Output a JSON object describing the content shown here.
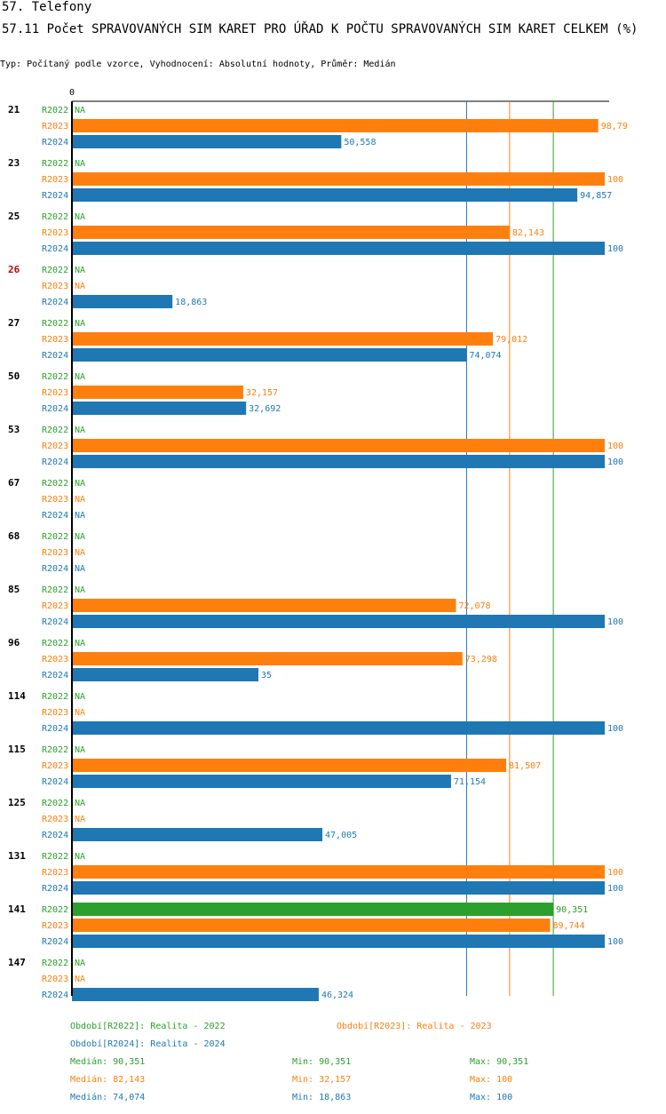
{
  "header": {
    "title": "57. Telefony",
    "subtitle": "57.11 Počet SPRAVOVANÝCH SIM KARET PRO ÚŘAD K POČTU SPRAVOVANÝCH SIM KARET CELKEM (%)",
    "meta": "Typ: Počítaný podle vzorce, Vyhodnocení: Absolutní hodnoty, Průměr: Medián"
  },
  "colors": {
    "R2022": "#2ca02c",
    "R2023": "#ff7f0e",
    "R2024": "#1f77b4",
    "highlight_group": "#cc0000",
    "default_group": "#000000"
  },
  "chart_data": {
    "type": "bar",
    "orientation": "horizontal",
    "axis_zero_label": "0",
    "xlim": [
      0,
      100
    ],
    "na_label": "NA",
    "series_names": [
      "R2022",
      "R2023",
      "R2024"
    ],
    "groups": [
      {
        "label": "21",
        "highlight": false,
        "values": [
          null,
          98.79,
          50.558
        ],
        "labels": [
          "NA",
          "98,79",
          "50,558"
        ]
      },
      {
        "label": "23",
        "highlight": false,
        "values": [
          null,
          100,
          94.857
        ],
        "labels": [
          "NA",
          "100",
          "94,857"
        ]
      },
      {
        "label": "25",
        "highlight": false,
        "values": [
          null,
          82.143,
          100
        ],
        "labels": [
          "NA",
          "82,143",
          "100"
        ]
      },
      {
        "label": "26",
        "highlight": true,
        "values": [
          null,
          null,
          18.863
        ],
        "labels": [
          "NA",
          "NA",
          "18,863"
        ]
      },
      {
        "label": "27",
        "highlight": false,
        "values": [
          null,
          79.012,
          74.074
        ],
        "labels": [
          "NA",
          "79,012",
          "74,074"
        ]
      },
      {
        "label": "50",
        "highlight": false,
        "values": [
          null,
          32.157,
          32.692
        ],
        "labels": [
          "NA",
          "32,157",
          "32,692"
        ]
      },
      {
        "label": "53",
        "highlight": false,
        "values": [
          null,
          100,
          100
        ],
        "labels": [
          "NA",
          "100",
          "100"
        ]
      },
      {
        "label": "67",
        "highlight": false,
        "values": [
          null,
          null,
          null
        ],
        "labels": [
          "NA",
          "NA",
          "NA"
        ]
      },
      {
        "label": "68",
        "highlight": false,
        "values": [
          null,
          null,
          null
        ],
        "labels": [
          "NA",
          "NA",
          "NA"
        ]
      },
      {
        "label": "85",
        "highlight": false,
        "values": [
          null,
          72.078,
          100
        ],
        "labels": [
          "NA",
          "72,078",
          "100"
        ]
      },
      {
        "label": "96",
        "highlight": false,
        "values": [
          null,
          73.298,
          35
        ],
        "labels": [
          "NA",
          "73,298",
          "35"
        ]
      },
      {
        "label": "114",
        "highlight": false,
        "values": [
          null,
          null,
          100
        ],
        "labels": [
          "NA",
          "NA",
          "100"
        ]
      },
      {
        "label": "115",
        "highlight": false,
        "values": [
          null,
          81.507,
          71.154
        ],
        "labels": [
          "NA",
          "81,507",
          "71,154"
        ]
      },
      {
        "label": "125",
        "highlight": false,
        "values": [
          null,
          null,
          47.005
        ],
        "labels": [
          "NA",
          "NA",
          "47,005"
        ]
      },
      {
        "label": "131",
        "highlight": false,
        "values": [
          null,
          100,
          100
        ],
        "labels": [
          "NA",
          "100",
          "100"
        ]
      },
      {
        "label": "141",
        "highlight": false,
        "values": [
          90.351,
          89.744,
          100
        ],
        "labels": [
          "90,351",
          "89,744",
          "100"
        ]
      },
      {
        "label": "147",
        "highlight": false,
        "values": [
          null,
          null,
          46.324
        ],
        "labels": [
          "NA",
          "NA",
          "46,324"
        ]
      }
    ],
    "median_lines": [
      {
        "series": "R2022",
        "value": 90.351
      },
      {
        "series": "R2023",
        "value": 82.143
      },
      {
        "series": "R2024",
        "value": 74.074
      }
    ]
  },
  "legend": {
    "periods": [
      {
        "series": "R2022",
        "text": "Období[R2022]: Realita - 2022"
      },
      {
        "series": "R2023",
        "text": "Období[R2023]: Realita - 2023"
      },
      {
        "series": "R2024",
        "text": "Období[R2024]: Realita - 2024"
      }
    ],
    "stats": [
      {
        "series": "R2022",
        "median": "Medián: 90,351",
        "min": "Min: 90,351",
        "max": "Max: 90,351"
      },
      {
        "series": "R2023",
        "median": "Medián: 82,143",
        "min": "Min: 32,157",
        "max": "Max: 100"
      },
      {
        "series": "R2024",
        "median": "Medián: 74,074",
        "min": "Min: 18,863",
        "max": "Max: 100"
      }
    ]
  }
}
